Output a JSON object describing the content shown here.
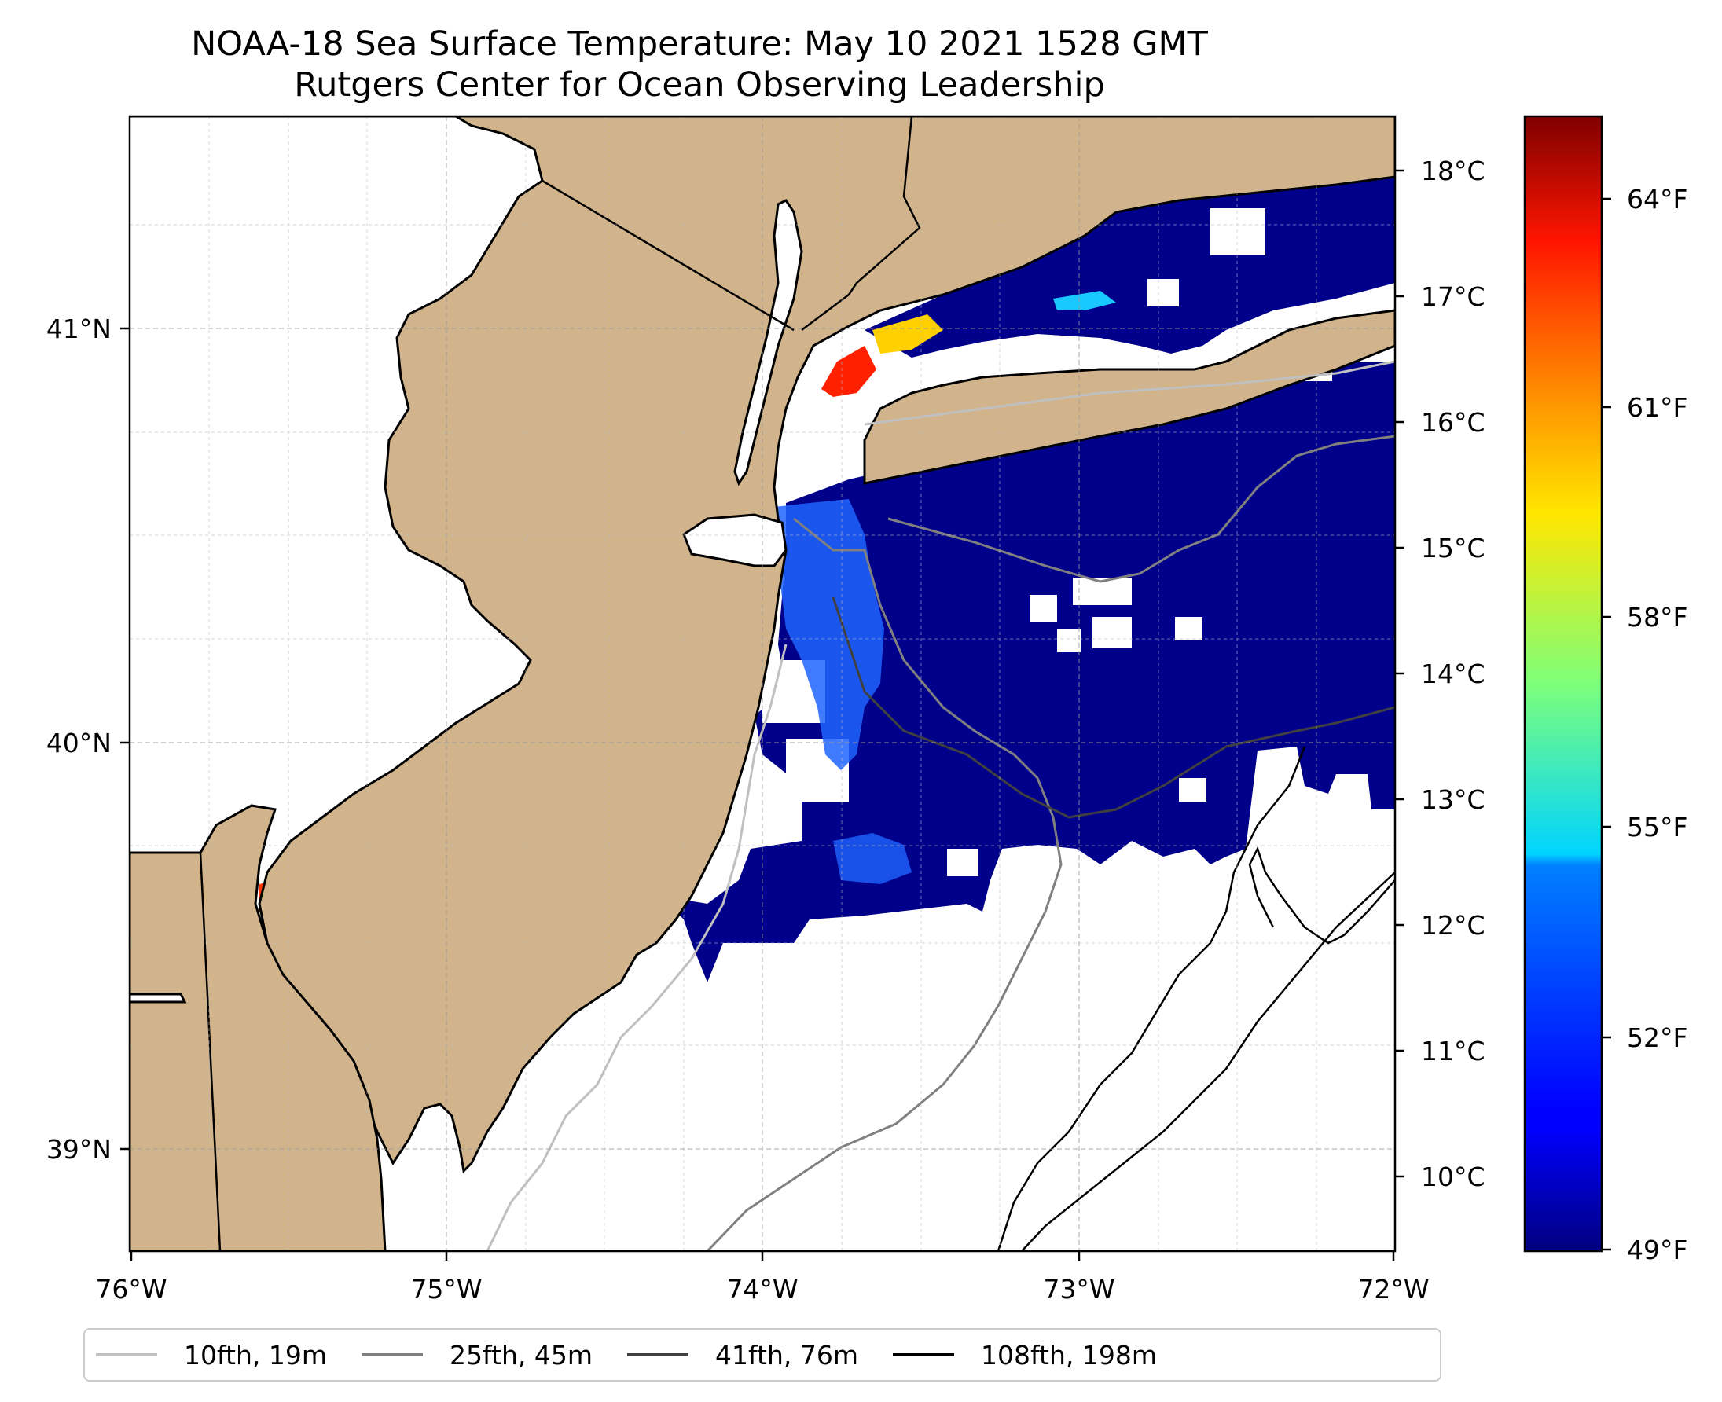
{
  "title": "NOAA-18 Sea Surface Temperature: May 10 2021 1528 GMT",
  "subtitle": "Rutgers Center for Ocean Observing Leadership",
  "map": {
    "lon_range": [
      -76,
      -72
    ],
    "lat_range": [
      38.7,
      41.5
    ],
    "lon_ticks": [
      "76°W",
      "75°W",
      "74°W",
      "73°W",
      "72°W"
    ],
    "lat_ticks": [
      "41°N",
      "40°N",
      "39°N"
    ],
    "gridlines": true,
    "land_color": "#d2b48c",
    "cloud_mask_color": "#ffffff",
    "cold_water_color": "#00008b"
  },
  "temp_axis": {
    "celsius_ticks": [
      "18°C",
      "17°C",
      "16°C",
      "15°C",
      "14°C",
      "13°C",
      "12°C",
      "11°C",
      "10°C"
    ]
  },
  "colorbar": {
    "colormap": "jet",
    "range_F": [
      49,
      65
    ],
    "fahrenheit_ticks": [
      "64°F",
      "61°F",
      "58°F",
      "55°F",
      "52°F",
      "49°F"
    ]
  },
  "legend": [
    {
      "label": "10fth, 19m",
      "color": "#c0c0c0"
    },
    {
      "label": "25fth, 45m",
      "color": "#808080"
    },
    {
      "label": "41fth, 76m",
      "color": "#404040"
    },
    {
      "label": "108fth, 198m",
      "color": "#000000"
    }
  ]
}
